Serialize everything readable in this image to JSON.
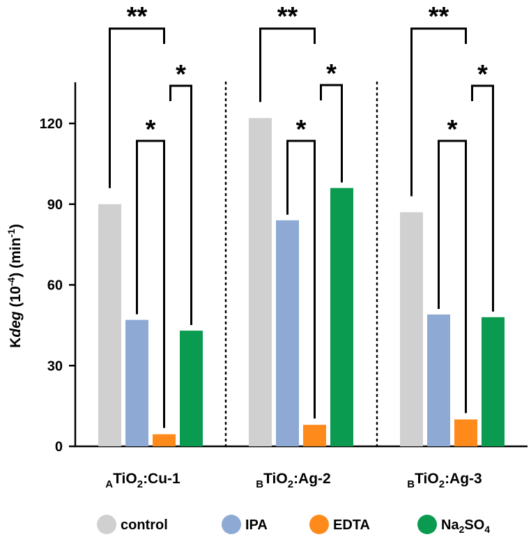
{
  "chart_data": {
    "type": "bar",
    "title": "",
    "xlabel": "",
    "ylabel": {
      "prefix": "K",
      "italic": "deg",
      "unit_open": " (10",
      "unit_exp": "-4",
      "unit_mid": ") (min",
      "unit_exp2": "-1",
      "unit_close": ")"
    },
    "ylim": [
      0,
      135
    ],
    "yticks": [
      "0",
      "30",
      "60",
      "90",
      "120"
    ],
    "ytick_values": [
      0,
      30,
      60,
      90,
      120
    ],
    "categories": [
      {
        "sub_prefix": "A",
        "main": "TiO",
        "sub2": "2",
        "suffix": ":Cu-1"
      },
      {
        "sub_prefix": "B",
        "main": "TiO",
        "sub2": "2",
        "suffix": ":Ag-2"
      },
      {
        "sub_prefix": "B",
        "main": "TiO",
        "sub2": "2",
        "suffix": ":Ag-3"
      }
    ],
    "series": [
      {
        "name": "control",
        "label": "control",
        "color": "#d0d0d0",
        "values": [
          90,
          122,
          87
        ]
      },
      {
        "name": "IPA",
        "label": "IPA",
        "color": "#8eaad4",
        "values": [
          47,
          84,
          49
        ]
      },
      {
        "name": "EDTA",
        "label": "EDTA",
        "color": "#ff8a1c",
        "values": [
          4.5,
          8,
          10
        ]
      },
      {
        "name": "Na2SO4",
        "label": "Na",
        "label_sub": "2",
        "label_suffix": "SO",
        "label_sub2": "4",
        "color": "#0a9a50",
        "values": [
          43,
          96,
          48
        ]
      }
    ],
    "significance": [
      {
        "group": 0,
        "from": "control",
        "to": "EDTA",
        "text": "**"
      },
      {
        "group": 0,
        "from": "IPA",
        "to": "EDTA",
        "text": "*"
      },
      {
        "group": 0,
        "from": "EDTA",
        "to": "Na2SO4",
        "text": "*"
      },
      {
        "group": 1,
        "from": "control",
        "to": "EDTA",
        "text": "**"
      },
      {
        "group": 1,
        "from": "IPA",
        "to": "EDTA",
        "text": "*"
      },
      {
        "group": 1,
        "from": "EDTA",
        "to": "Na2SO4",
        "text": "*"
      },
      {
        "group": 2,
        "from": "control",
        "to": "EDTA",
        "text": "**"
      },
      {
        "group": 2,
        "from": "IPA",
        "to": "EDTA",
        "text": "*"
      },
      {
        "group": 2,
        "from": "EDTA",
        "to": "Na2SO4",
        "text": "*"
      }
    ],
    "legend_position": "bottom",
    "grid": false
  }
}
